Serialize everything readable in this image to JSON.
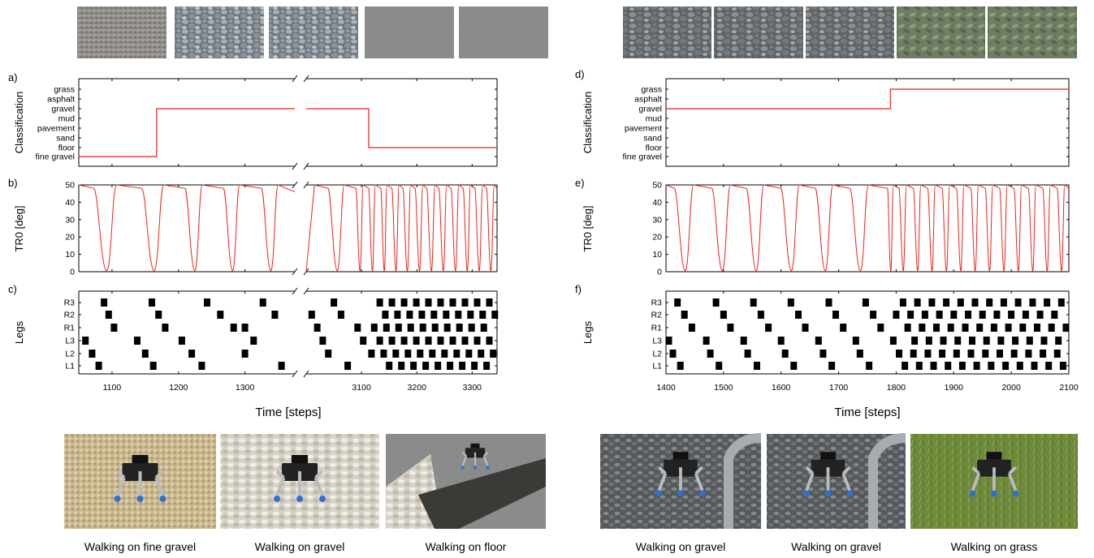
{
  "left": {
    "panel_letters": [
      "a)",
      "b)",
      "c)"
    ],
    "terrain_strip": [
      "fine gravel",
      "gravel",
      "gravel",
      "floor",
      "floor"
    ],
    "photos": [
      {
        "terrain": "fine gravel",
        "caption": "Walking on fine gravel"
      },
      {
        "terrain": "gravel",
        "caption": "Walking on gravel"
      },
      {
        "terrain": "floor",
        "caption": "Walking on floor"
      }
    ],
    "xlabel": "Time [steps]"
  },
  "right": {
    "panel_letters": [
      "d)",
      "e)",
      "f)"
    ],
    "terrain_strip": [
      "gravel",
      "gravel",
      "gravel",
      "grass",
      "grass"
    ],
    "photos": [
      {
        "terrain": "gravel",
        "caption": "Walking on gravel"
      },
      {
        "terrain": "gravel",
        "caption": "Walking on gravel"
      },
      {
        "terrain": "grass",
        "caption": "Walking on grass"
      }
    ],
    "xlabel": "Time [steps]"
  },
  "colors": {
    "trace": "#e8231c",
    "axis": "#000000"
  },
  "chart_data": [
    {
      "id": "a",
      "type": "line",
      "ylabel": "Classification",
      "categories": [
        "fine gravel",
        "floor",
        "sand",
        "pavement",
        "mud",
        "gravel",
        "asphalt",
        "grass"
      ],
      "broken_axis": true,
      "segments": [
        {
          "xlim": [
            1050,
            1375
          ],
          "x": [
            1050,
            1167,
            1167,
            1375
          ],
          "y": [
            "fine gravel",
            "fine gravel",
            "gravel",
            "gravel"
          ]
        },
        {
          "xlim": [
            3000,
            3345
          ],
          "x": [
            3000,
            3113,
            3113,
            3345
          ],
          "y": [
            "gravel",
            "gravel",
            "floor",
            "floor"
          ]
        }
      ]
    },
    {
      "id": "b",
      "type": "line",
      "ylabel": "TR0 [deg]",
      "ylim": [
        0,
        50
      ],
      "yticks": [
        0,
        10,
        20,
        30,
        40,
        50
      ],
      "broken_axis": true,
      "segments": [
        {
          "xlim": [
            1050,
            1375
          ],
          "descents": [
            1073,
            1145,
            1210,
            1268,
            1325
          ],
          "peaks": [
            1107,
            1178,
            1236,
            1292,
            1350
          ],
          "end_value": 46
        },
        {
          "xlim": [
            3000,
            3345
          ],
          "start_peak": 3015,
          "descents": [
            3040,
            3090,
            3113,
            3135,
            3155,
            3175,
            3197,
            3218,
            3240,
            3262,
            3284,
            3305,
            3326
          ],
          "peaks": [
            3069,
            3103,
            3125,
            3146,
            3168,
            3189,
            3211,
            3233,
            3254,
            3276,
            3297,
            3319,
            3340
          ]
        }
      ]
    },
    {
      "id": "c",
      "type": "scatter",
      "ylabel": "Legs",
      "categories": [
        "L1",
        "L2",
        "L3",
        "R1",
        "R2",
        "R3"
      ],
      "xlabel": "Time [steps]",
      "xticks_segments": [
        [
          1100,
          1200,
          1300
        ],
        [
          3100,
          3200,
          3300
        ]
      ],
      "broken_axis": true,
      "segments": [
        {
          "xlim": [
            1050,
            1375
          ],
          "legs": {
            "R3": [
              1088,
              1160,
              1243,
              1327
            ],
            "R2": [
              1095,
              1170,
              1263,
              1345
            ],
            "R1": [
              1103,
              1180,
              1283,
              1300
            ],
            "L3": [
              1060,
              1138,
              1205,
              1313
            ],
            "L2": [
              1070,
              1150,
              1220,
              1300
            ],
            "L1": [
              1080,
              1162,
              1235,
              1355
            ]
          }
        },
        {
          "xlim": [
            3000,
            3345
          ],
          "legs": {
            "R3": [
              3050,
              3133,
              3155,
              3177,
              3199,
              3221,
              3243,
              3265,
              3287,
              3309,
              3331
            ],
            "R2": [
              3010,
              3063,
              3143,
              3165,
              3187,
              3209,
              3231,
              3253,
              3275,
              3297,
              3319,
              3341
            ],
            "R1": [
              3020,
              3093,
              3123,
              3145,
              3167,
              3189,
              3211,
              3233,
              3255,
              3277,
              3299,
              3321
            ],
            "L3": [
              3030,
              3103,
              3133,
              3155,
              3177,
              3199,
              3221,
              3243,
              3265,
              3287,
              3309,
              3331
            ],
            "L2": [
              3040,
              3118,
              3140,
              3162,
              3184,
              3206,
              3228,
              3250,
              3272,
              3294,
              3316,
              3338
            ],
            "L1": [
              3075,
              3150,
              3172,
              3194,
              3216,
              3238,
              3260,
              3282,
              3304,
              3326
            ]
          }
        }
      ]
    },
    {
      "id": "d",
      "type": "line",
      "ylabel": "Classification",
      "categories": [
        "fine gravel",
        "floor",
        "sand",
        "pavement",
        "mud",
        "gravel",
        "asphalt",
        "grass"
      ],
      "xlim": [
        1400,
        2100
      ],
      "x": [
        1400,
        1790,
        1790,
        2100
      ],
      "y": [
        "gravel",
        "gravel",
        "grass",
        "grass"
      ]
    },
    {
      "id": "e",
      "type": "line",
      "ylabel": "TR0 [deg]",
      "ylim": [
        0,
        50
      ],
      "yticks": [
        0,
        10,
        20,
        30,
        40,
        50
      ],
      "xlim": [
        1400,
        2100
      ],
      "descents": [
        1415,
        1480,
        1540,
        1600,
        1660,
        1720,
        1785,
        1805,
        1830,
        1855,
        1880,
        1905,
        1930,
        1955,
        1980,
        2005,
        2030,
        2055,
        2080
      ],
      "peaks": [
        1448,
        1512,
        1570,
        1632,
        1690,
        1752,
        1795,
        1818,
        1843,
        1868,
        1893,
        1918,
        1943,
        1968,
        1993,
        2018,
        2043,
        2068,
        2093
      ]
    },
    {
      "id": "f",
      "type": "scatter",
      "ylabel": "Legs",
      "xlabel": "Time [steps]",
      "categories": [
        "L1",
        "L2",
        "L3",
        "R1",
        "R2",
        "R3"
      ],
      "xlim": [
        1400,
        2100
      ],
      "xticks": [
        1400,
        1500,
        1600,
        1700,
        1800,
        1900,
        2000,
        2100
      ],
      "legs": {
        "R3": [
          1420,
          1487,
          1552,
          1617,
          1683,
          1747,
          1812,
          1837,
          1862,
          1887,
          1912,
          1937,
          1962,
          1987,
          2012,
          2037,
          2062,
          2087
        ],
        "R2": [
          1432,
          1500,
          1565,
          1630,
          1695,
          1760,
          1800,
          1825,
          1850,
          1875,
          1900,
          1925,
          1950,
          1975,
          2000,
          2025,
          2050,
          2075
        ],
        "R1": [
          1445,
          1512,
          1578,
          1642,
          1708,
          1773,
          1820,
          1845,
          1870,
          1895,
          1920,
          1945,
          1970,
          1995,
          2020,
          2045,
          2070,
          2095
        ],
        "L3": [
          1405,
          1470,
          1535,
          1600,
          1665,
          1730,
          1795,
          1832,
          1857,
          1882,
          1907,
          1932,
          1957,
          1982,
          2007,
          2032,
          2057,
          2082
        ],
        "L2": [
          1412,
          1477,
          1542,
          1607,
          1673,
          1737,
          1805,
          1830,
          1855,
          1880,
          1905,
          1930,
          1955,
          1980,
          2005,
          2030,
          2055,
          2080
        ],
        "L1": [
          1425,
          1492,
          1558,
          1622,
          1688,
          1753,
          1815,
          1840,
          1865,
          1890,
          1915,
          1940,
          1965,
          1990,
          2015,
          2040,
          2065,
          2090
        ]
      }
    }
  ]
}
